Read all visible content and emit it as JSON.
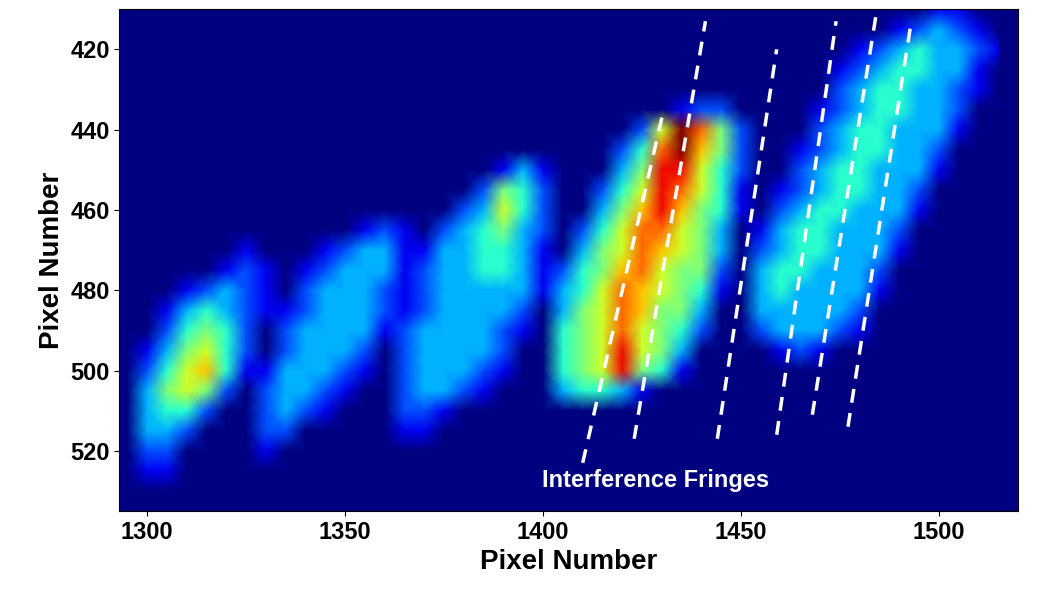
{
  "chart_data": {
    "type": "heatmap",
    "x_label": "Pixel Number",
    "y_label": "Pixel Number",
    "xlim": [
      1293,
      1520
    ],
    "ylim": [
      535,
      410
    ],
    "xticks": [
      1300,
      1350,
      1400,
      1450,
      1500
    ],
    "yticks": [
      420,
      440,
      460,
      480,
      500,
      520
    ],
    "color": "jet",
    "color_range": [
      0,
      10
    ],
    "annotation": "Interference Fringes",
    "fringes": [
      [
        [
          1410,
          523
        ],
        [
          1430,
          437
        ]
      ],
      [
        [
          1423,
          517
        ],
        [
          1441,
          413
        ]
      ],
      [
        [
          1444,
          517
        ],
        [
          1459,
          420
        ]
      ],
      [
        [
          1459,
          516
        ],
        [
          1474,
          413
        ]
      ],
      [
        [
          1468,
          511
        ],
        [
          1484,
          412
        ]
      ],
      [
        [
          1477,
          514
        ],
        [
          1493,
          413
        ]
      ]
    ],
    "x": [
      1295,
      1300,
      1305,
      1310,
      1315,
      1320,
      1325,
      1330,
      1335,
      1340,
      1345,
      1350,
      1355,
      1360,
      1365,
      1370,
      1375,
      1380,
      1385,
      1390,
      1395,
      1400,
      1405,
      1410,
      1415,
      1420,
      1425,
      1430,
      1435,
      1440,
      1445,
      1450,
      1455,
      1460,
      1465,
      1470,
      1475,
      1480,
      1485,
      1490,
      1495,
      1500,
      1505,
      1510,
      1515
    ],
    "y": [
      410,
      415,
      420,
      425,
      430,
      435,
      440,
      445,
      450,
      455,
      460,
      465,
      470,
      475,
      480,
      485,
      490,
      495,
      500,
      505,
      510,
      515,
      520,
      525,
      530,
      535
    ],
    "cells": [
      [
        0,
        0,
        0,
        0,
        0,
        0,
        0,
        0,
        0,
        0,
        0,
        0,
        0,
        0,
        0,
        0,
        0,
        0,
        0,
        0,
        0,
        0,
        0,
        0,
        0,
        0,
        0,
        0,
        0,
        0,
        0,
        0,
        0,
        0,
        0,
        0,
        0,
        0,
        0,
        0,
        0,
        1,
        1,
        0,
        0
      ],
      [
        0,
        0,
        0,
        0,
        0,
        0,
        0,
        0,
        0,
        0,
        0,
        0,
        0,
        0,
        0,
        0,
        0,
        0,
        0,
        0,
        0,
        0,
        0,
        0,
        0,
        0,
        0,
        0,
        0,
        0,
        0,
        0,
        0,
        0,
        0,
        0,
        0,
        0,
        0,
        1,
        2,
        3,
        2,
        1,
        0
      ],
      [
        0,
        0,
        0,
        0,
        0,
        0,
        0,
        0,
        0,
        0,
        0,
        0,
        0,
        0,
        0,
        0,
        0,
        0,
        0,
        0,
        0,
        0,
        0,
        0,
        0,
        0,
        0,
        0,
        0,
        0,
        0,
        0,
        0,
        0,
        0,
        0,
        0,
        1,
        2,
        3,
        4,
        3,
        3,
        2,
        1
      ],
      [
        0,
        0,
        0,
        0,
        0,
        0,
        0,
        0,
        0,
        0,
        0,
        0,
        0,
        0,
        0,
        0,
        0,
        0,
        0,
        0,
        0,
        0,
        0,
        0,
        0,
        0,
        0,
        0,
        0,
        0,
        0,
        0,
        0,
        0,
        0,
        0,
        1,
        2,
        3,
        4,
        4,
        3,
        3,
        1,
        0
      ],
      [
        0,
        0,
        0,
        0,
        0,
        0,
        0,
        0,
        0,
        0,
        0,
        0,
        0,
        0,
        0,
        0,
        0,
        0,
        0,
        0,
        0,
        0,
        0,
        0,
        0,
        0,
        0,
        0,
        0,
        0,
        0,
        0,
        0,
        0,
        0,
        0,
        2,
        3,
        4,
        4,
        3,
        3,
        2,
        1,
        0
      ],
      [
        0,
        0,
        0,
        0,
        0,
        0,
        0,
        0,
        0,
        0,
        0,
        0,
        0,
        0,
        0,
        0,
        0,
        0,
        0,
        0,
        0,
        0,
        0,
        0,
        0,
        0,
        0,
        0,
        1,
        2,
        2,
        0,
        0,
        0,
        0,
        1,
        2,
        3,
        4,
        4,
        3,
        3,
        2,
        0,
        0
      ],
      [
        0,
        0,
        0,
        0,
        0,
        0,
        0,
        0,
        0,
        0,
        0,
        0,
        0,
        0,
        0,
        0,
        0,
        0,
        0,
        0,
        0,
        0,
        0,
        0,
        0,
        0,
        2,
        6,
        10,
        8,
        5,
        2,
        0,
        0,
        0,
        2,
        3,
        4,
        4,
        3,
        3,
        3,
        1,
        0,
        0
      ],
      [
        0,
        0,
        0,
        0,
        0,
        0,
        0,
        0,
        0,
        0,
        0,
        0,
        0,
        0,
        0,
        0,
        0,
        0,
        0,
        0,
        0,
        0,
        0,
        0,
        0,
        2,
        4,
        8,
        10,
        7,
        5,
        2,
        0,
        0,
        1,
        2,
        3,
        4,
        4,
        3,
        3,
        2,
        0,
        0,
        0
      ],
      [
        0,
        0,
        0,
        0,
        0,
        0,
        0,
        0,
        0,
        0,
        0,
        0,
        0,
        0,
        0,
        0,
        0,
        0,
        0,
        1,
        3,
        1,
        0,
        0,
        0,
        3,
        5,
        9,
        9,
        6,
        4,
        2,
        0,
        0,
        2,
        3,
        4,
        4,
        3,
        3,
        3,
        1,
        0,
        0,
        0
      ],
      [
        0,
        0,
        0,
        0,
        0,
        0,
        0,
        0,
        0,
        0,
        0,
        0,
        0,
        0,
        0,
        0,
        0,
        0,
        2,
        5,
        4,
        2,
        0,
        0,
        2,
        4,
        6,
        9,
        8,
        6,
        4,
        1,
        0,
        1,
        2,
        3,
        4,
        4,
        3,
        3,
        2,
        0,
        0,
        0,
        0
      ],
      [
        0,
        0,
        0,
        0,
        0,
        0,
        0,
        0,
        0,
        0,
        0,
        0,
        0,
        0,
        0,
        0,
        0,
        2,
        3,
        6,
        4,
        2,
        0,
        0,
        3,
        5,
        7,
        9,
        7,
        5,
        4,
        1,
        0,
        2,
        3,
        4,
        4,
        3,
        3,
        3,
        1,
        0,
        0,
        0,
        0
      ],
      [
        0,
        0,
        0,
        0,
        0,
        0,
        0,
        0,
        0,
        0,
        0,
        0,
        1,
        2,
        1,
        0,
        2,
        3,
        4,
        5,
        3,
        2,
        0,
        2,
        4,
        6,
        8,
        8,
        6,
        5,
        3,
        0,
        1,
        3,
        4,
        4,
        3,
        3,
        3,
        2,
        0,
        0,
        0,
        0,
        0
      ],
      [
        0,
        0,
        0,
        0,
        0,
        0,
        1,
        0,
        0,
        0,
        1,
        2,
        3,
        3,
        1,
        1,
        3,
        3,
        4,
        4,
        3,
        1,
        0,
        3,
        5,
        6,
        8,
        7,
        6,
        5,
        3,
        0,
        2,
        3,
        4,
        4,
        3,
        3,
        3,
        1,
        0,
        0,
        0,
        0,
        0
      ],
      [
        0,
        0,
        0,
        0,
        0,
        1,
        2,
        1,
        0,
        1,
        2,
        3,
        3,
        3,
        1,
        2,
        3,
        3,
        4,
        4,
        3,
        1,
        2,
        4,
        5,
        7,
        8,
        6,
        5,
        5,
        2,
        0,
        3,
        4,
        4,
        3,
        3,
        3,
        2,
        0,
        0,
        0,
        0,
        0,
        0
      ],
      [
        0,
        0,
        0,
        1,
        2,
        3,
        2,
        1,
        0,
        2,
        3,
        3,
        3,
        2,
        1,
        2,
        3,
        3,
        3,
        3,
        3,
        1,
        3,
        4,
        6,
        8,
        7,
        6,
        5,
        4,
        1,
        0,
        3,
        4,
        3,
        3,
        3,
        3,
        1,
        0,
        0,
        0,
        0,
        0,
        0
      ],
      [
        0,
        0,
        1,
        3,
        4,
        3,
        2,
        1,
        1,
        2,
        3,
        3,
        3,
        2,
        1,
        2,
        3,
        3,
        3,
        3,
        2,
        0,
        3,
        5,
        6,
        8,
        7,
        5,
        5,
        3,
        0,
        0,
        3,
        3,
        3,
        3,
        3,
        2,
        0,
        0,
        0,
        0,
        0,
        0,
        0
      ],
      [
        0,
        0,
        2,
        4,
        5,
        4,
        2,
        0,
        2,
        3,
        3,
        3,
        3,
        1,
        2,
        3,
        3,
        3,
        3,
        2,
        1,
        0,
        4,
        5,
        6,
        8,
        6,
        5,
        4,
        2,
        0,
        0,
        2,
        3,
        3,
        3,
        2,
        1,
        0,
        0,
        0,
        0,
        0,
        0,
        0
      ],
      [
        0,
        1,
        3,
        5,
        6,
        4,
        2,
        0,
        2,
        3,
        3,
        3,
        2,
        0,
        2,
        3,
        3,
        3,
        3,
        2,
        0,
        0,
        4,
        5,
        6,
        9,
        6,
        5,
        3,
        0,
        0,
        0,
        0,
        1,
        2,
        1,
        0,
        0,
        0,
        0,
        0,
        0,
        0,
        0,
        0
      ],
      [
        0,
        2,
        4,
        6,
        7,
        4,
        1,
        1,
        3,
        3,
        3,
        2,
        1,
        0,
        2,
        3,
        3,
        3,
        2,
        1,
        0,
        0,
        4,
        5,
        6,
        9,
        5,
        4,
        1,
        0,
        0,
        0,
        0,
        0,
        0,
        0,
        0,
        0,
        0,
        0,
        0,
        0,
        0,
        0,
        0
      ],
      [
        0,
        3,
        5,
        6,
        5,
        2,
        0,
        2,
        3,
        3,
        2,
        1,
        0,
        0,
        2,
        3,
        3,
        2,
        1,
        0,
        0,
        0,
        3,
        4,
        4,
        3,
        1,
        0,
        0,
        0,
        0,
        0,
        0,
        0,
        0,
        0,
        0,
        0,
        0,
        0,
        0,
        0,
        0,
        0,
        0
      ],
      [
        0,
        3,
        4,
        4,
        2,
        0,
        0,
        2,
        3,
        2,
        1,
        0,
        0,
        0,
        2,
        2,
        1,
        0,
        0,
        0,
        0,
        0,
        0,
        0,
        0,
        0,
        0,
        0,
        0,
        0,
        0,
        0,
        0,
        0,
        0,
        0,
        0,
        0,
        0,
        0,
        0,
        0,
        0,
        0,
        0
      ],
      [
        0,
        3,
        3,
        2,
        0,
        0,
        0,
        2,
        2,
        0,
        0,
        0,
        0,
        0,
        1,
        1,
        0,
        0,
        0,
        0,
        0,
        0,
        0,
        0,
        0,
        0,
        0,
        0,
        0,
        0,
        0,
        0,
        0,
        0,
        0,
        0,
        0,
        0,
        0,
        0,
        0,
        0,
        0,
        0,
        0
      ],
      [
        0,
        2,
        2,
        0,
        0,
        0,
        0,
        1,
        0,
        0,
        0,
        0,
        0,
        0,
        0,
        0,
        0,
        0,
        0,
        0,
        0,
        0,
        0,
        0,
        0,
        0,
        0,
        0,
        0,
        0,
        0,
        0,
        0,
        0,
        0,
        0,
        0,
        0,
        0,
        0,
        0,
        0,
        0,
        0,
        0
      ],
      [
        0,
        1,
        1,
        0,
        0,
        0,
        0,
        0,
        0,
        0,
        0,
        0,
        0,
        0,
        0,
        0,
        0,
        0,
        0,
        0,
        0,
        0,
        0,
        0,
        0,
        0,
        0,
        0,
        0,
        0,
        0,
        0,
        0,
        0,
        0,
        0,
        0,
        0,
        0,
        0,
        0,
        0,
        0,
        0,
        0
      ],
      [
        0,
        0,
        0,
        0,
        0,
        0,
        0,
        0,
        0,
        0,
        0,
        0,
        0,
        0,
        0,
        0,
        0,
        0,
        0,
        0,
        0,
        0,
        0,
        0,
        0,
        0,
        0,
        0,
        0,
        0,
        0,
        0,
        0,
        0,
        0,
        0,
        0,
        0,
        0,
        0,
        0,
        0,
        0,
        0,
        0
      ],
      [
        0,
        0,
        0,
        0,
        0,
        0,
        0,
        0,
        0,
        0,
        0,
        0,
        0,
        0,
        0,
        0,
        0,
        0,
        0,
        0,
        0,
        0,
        0,
        0,
        0,
        0,
        0,
        0,
        0,
        0,
        0,
        0,
        0,
        0,
        0,
        0,
        0,
        0,
        0,
        0,
        0,
        0,
        0,
        0,
        0
      ]
    ]
  }
}
